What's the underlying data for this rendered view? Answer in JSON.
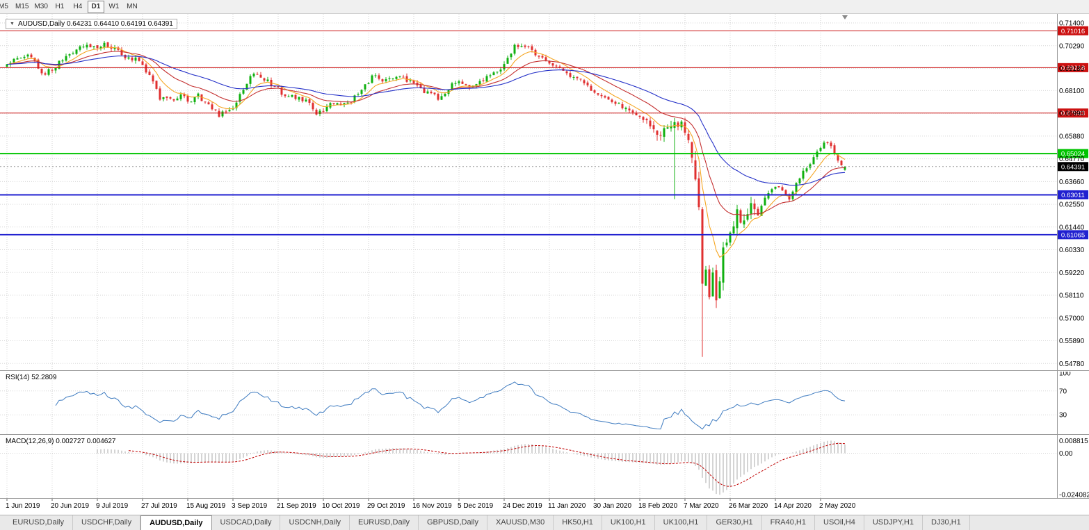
{
  "toolbar": {
    "timeframes": [
      "M5",
      "M15",
      "M30",
      "H1",
      "H4",
      "D1",
      "W1",
      "MN"
    ],
    "active_timeframe": "D1"
  },
  "chart": {
    "title": {
      "dropdown_icon": "▼",
      "text": "AUDUSD,Daily 0.64231 0.64410 0.64191 0.64391",
      "symbol": "AUDUSD",
      "period": "Daily",
      "open": "0.64231",
      "high": "0.64410",
      "low": "0.64191",
      "close": "0.64391"
    },
    "price_axis": {
      "p_top": 0.71841,
      "p_bottom": 0.5445,
      "grid": [
        "0.71400",
        "0.70290",
        "0.69180",
        "0.68100",
        "0.66990",
        "0.65880",
        "0.64770",
        "0.63660",
        "0.62550",
        "0.61440",
        "0.60330",
        "0.59220",
        "0.58110",
        "0.57000",
        "0.55890",
        "0.54780"
      ]
    },
    "hlines": [
      {
        "price": 0.71016,
        "label": "0.71016",
        "color": "#CC1111",
        "width": 1
      },
      {
        "price": 0.69218,
        "label": "0.69218",
        "color": "#CC1111",
        "width": 1
      },
      {
        "price": 0.67003,
        "label": "0.67003",
        "color": "#CC1111",
        "width": 1
      },
      {
        "price": 0.65024,
        "label": "0.65024",
        "color": "#00C400",
        "width": 2
      },
      {
        "price": 0.63011,
        "label": "0.63011",
        "color": "#2020D0",
        "width": 2
      },
      {
        "price": 0.61065,
        "label": "0.61065",
        "color": "#2020D0",
        "width": 2
      }
    ],
    "current_price": {
      "value": 0.64391,
      "label": "0.64391",
      "bg": "#000000",
      "fg": "#FFFFFF"
    },
    "date_axis": [
      "1 Jun 2019",
      "20 Jun 2019",
      "9 Jul 2019",
      "27 Jul 2019",
      "15 Aug 2019",
      "3 Sep 2019",
      "21 Sep 2019",
      "10 Oct 2019",
      "29 Oct 2019",
      "16 Nov 2019",
      "5 Dec 2019",
      "24 Dec 2019",
      "11 Jan 2020",
      "30 Jan 2020",
      "18 Feb 2020",
      "7 Mar 2020",
      "26 Mar 2020",
      "14 Apr 2020",
      "2 May 2020"
    ]
  },
  "rsi": {
    "label": "RSI(14) 52.2809",
    "period": 14,
    "value": 52.2809,
    "scale": [
      "100",
      "70",
      "30"
    ],
    "levels": [
      70,
      30
    ],
    "line_color": "#3E7BC0"
  },
  "macd": {
    "label": "MACD(12,26,9) 0.002727 0.004627",
    "fast": 12,
    "slow": 26,
    "signal": 9,
    "main_value": "0.002727",
    "signal_value": "0.004627",
    "scale": [
      "0.008815",
      "0.00",
      "-0.024082"
    ]
  },
  "colors": {
    "bull": "#10B010",
    "bear": "#E03030",
    "macd_hist": "#A8A8A8",
    "macd_signal": "#C00000"
  },
  "chart_data": {
    "type": "candlestick",
    "symbol": "AUDUSD",
    "timeframe": "Daily",
    "candle_count": 242,
    "candles_per_tick": 13,
    "visible_price_range": [
      0.5445,
      0.71841
    ],
    "anchors": [
      [
        0,
        0.6935
      ],
      [
        3,
        0.6965
      ],
      [
        6,
        0.6978
      ],
      [
        9,
        0.693
      ],
      [
        11,
        0.6885
      ],
      [
        13,
        0.692
      ],
      [
        16,
        0.6955
      ],
      [
        19,
        0.7
      ],
      [
        22,
        0.703
      ],
      [
        26,
        0.7015
      ],
      [
        28,
        0.704
      ],
      [
        31,
        0.701
      ],
      [
        34,
        0.698
      ],
      [
        37,
        0.696
      ],
      [
        39,
        0.6935
      ],
      [
        41,
        0.688
      ],
      [
        44,
        0.6775
      ],
      [
        47,
        0.6765
      ],
      [
        50,
        0.679
      ],
      [
        52,
        0.676
      ],
      [
        55,
        0.6785
      ],
      [
        58,
        0.6745
      ],
      [
        61,
        0.669
      ],
      [
        63,
        0.6715
      ],
      [
        65,
        0.6735
      ],
      [
        68,
        0.681
      ],
      [
        71,
        0.69
      ],
      [
        73,
        0.6885
      ],
      [
        76,
        0.684
      ],
      [
        78,
        0.6815
      ],
      [
        81,
        0.677
      ],
      [
        84,
        0.6785
      ],
      [
        87,
        0.674
      ],
      [
        89,
        0.6705
      ],
      [
        91,
        0.672
      ],
      [
        94,
        0.6755
      ],
      [
        97,
        0.674
      ],
      [
        100,
        0.6775
      ],
      [
        103,
        0.684
      ],
      [
        106,
        0.689
      ],
      [
        109,
        0.6855
      ],
      [
        112,
        0.688
      ],
      [
        115,
        0.686
      ],
      [
        117,
        0.684
      ],
      [
        120,
        0.6805
      ],
      [
        123,
        0.6785
      ],
      [
        125,
        0.677
      ],
      [
        127,
        0.6825
      ],
      [
        130,
        0.685
      ],
      [
        133,
        0.6835
      ],
      [
        136,
        0.686
      ],
      [
        139,
        0.688
      ],
      [
        141,
        0.6895
      ],
      [
        143,
        0.6945
      ],
      [
        146,
        0.7025
      ],
      [
        148,
        0.7035
      ],
      [
        151,
        0.7
      ],
      [
        154,
        0.6965
      ],
      [
        156,
        0.6935
      ],
      [
        159,
        0.6915
      ],
      [
        162,
        0.6885
      ],
      [
        165,
        0.6855
      ],
      [
        169,
        0.68
      ],
      [
        172,
        0.6775
      ],
      [
        175,
        0.6745
      ],
      [
        178,
        0.6715
      ],
      [
        182,
        0.669
      ],
      [
        185,
        0.662
      ],
      [
        188,
        0.659
      ],
      [
        190,
        0.663
      ],
      [
        192,
        0.666
      ],
      [
        195,
        0.663
      ],
      [
        196,
        0.655
      ],
      [
        197,
        0.648
      ],
      [
        198,
        0.639
      ],
      [
        199,
        0.623
      ],
      [
        200,
        0.585
      ],
      [
        201,
        0.592
      ],
      [
        202,
        0.579
      ],
      [
        203,
        0.594
      ],
      [
        204,
        0.577
      ],
      [
        205,
        0.59
      ],
      [
        206,
        0.603
      ],
      [
        207,
        0.609
      ],
      [
        208,
        0.613
      ],
      [
        210,
        0.621
      ],
      [
        212,
        0.617
      ],
      [
        214,
        0.626
      ],
      [
        216,
        0.62
      ],
      [
        218,
        0.629
      ],
      [
        221,
        0.635
      ],
      [
        223,
        0.631
      ],
      [
        225,
        0.6275
      ],
      [
        227,
        0.637
      ],
      [
        229,
        0.641
      ],
      [
        231,
        0.646
      ],
      [
        234,
        0.6525
      ],
      [
        236,
        0.6565
      ],
      [
        238,
        0.65
      ],
      [
        240,
        0.645
      ],
      [
        241,
        0.6439
      ]
    ],
    "special_candles": [
      {
        "i": 200,
        "low": 0.551
      },
      {
        "i": 192,
        "low": 0.628
      }
    ],
    "last_candle": {
      "open": 0.64231,
      "high": 0.6441,
      "low": 0.64191,
      "close": 0.64391
    },
    "volatility_zones": [
      {
        "from": 184,
        "to": 215,
        "mult": 2.2
      },
      {
        "from": 196,
        "to": 207,
        "mult": 3.5
      }
    ],
    "moving_averages": [
      {
        "period": 8,
        "color": "#F5A623"
      },
      {
        "period": 20,
        "color": "#C43030"
      },
      {
        "period": 45,
        "color": "#2430C8"
      }
    ]
  },
  "tabs": {
    "labels": [
      "EURUSD,Daily",
      "USDCHF,Daily",
      "AUDUSD,Daily",
      "USDCAD,Daily",
      "USDCNH,Daily",
      "EURUSD,Daily",
      "GBPUSD,Daily",
      "XAUUSD,M30",
      "HK50,H1",
      "UK100,H1",
      "UK100,H1",
      "GER30,H1",
      "FRA40,H1",
      "USOil,H4",
      "USDJPY,H1",
      "DJ30,H1"
    ],
    "active_index": 2
  }
}
